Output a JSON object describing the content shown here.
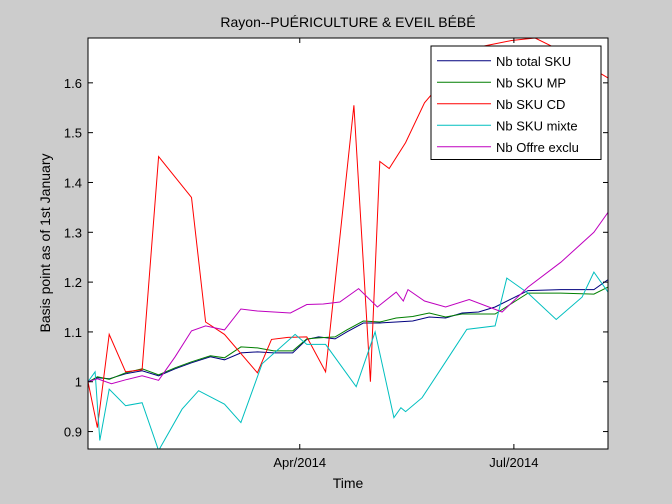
{
  "chart_data": {
    "type": "line",
    "title": "Rayon--PUÉRICULTURE & EVEIL BÉBÉ",
    "xlabel": "Time",
    "ylabel": "Basis point as of 1st January",
    "xlim": [
      "2014-01-01",
      "2014-08-10"
    ],
    "ylim": [
      0.865,
      1.69
    ],
    "xticks": [
      {
        "date": "2014-04-01",
        "label": "Apr/2014"
      },
      {
        "date": "2014-07-01",
        "label": "Jul/2014"
      }
    ],
    "yticks": [
      {
        "value": 0.9,
        "label": "0.9"
      },
      {
        "value": 1.0,
        "label": "1"
      },
      {
        "value": 1.1,
        "label": "1.1"
      },
      {
        "value": 1.2,
        "label": "1.2"
      },
      {
        "value": 1.3,
        "label": "1.3"
      },
      {
        "value": 1.4,
        "label": "1.4"
      },
      {
        "value": 1.5,
        "label": "1.5"
      },
      {
        "value": 1.6,
        "label": "1.6"
      }
    ],
    "grid": false,
    "legend_position": "top-right",
    "series": [
      {
        "name": "Nb total SKU",
        "color": "#00007f",
        "points": [
          [
            "2014-01-01",
            1.0
          ],
          [
            "2014-01-05",
            1.008
          ],
          [
            "2014-01-10",
            1.006
          ],
          [
            "2014-01-17",
            1.016
          ],
          [
            "2014-01-24",
            1.022
          ],
          [
            "2014-01-31",
            1.012
          ],
          [
            "2014-02-07",
            1.026
          ],
          [
            "2014-02-14",
            1.038
          ],
          [
            "2014-02-22",
            1.05
          ],
          [
            "2014-02-28",
            1.044
          ],
          [
            "2014-03-07",
            1.058
          ],
          [
            "2014-03-14",
            1.06
          ],
          [
            "2014-03-21",
            1.058
          ],
          [
            "2014-03-29",
            1.058
          ],
          [
            "2014-04-04",
            1.085
          ],
          [
            "2014-04-09",
            1.09
          ],
          [
            "2014-04-16",
            1.086
          ],
          [
            "2014-04-21",
            1.1
          ],
          [
            "2014-04-28",
            1.118
          ],
          [
            "2014-05-05",
            1.118
          ],
          [
            "2014-05-12",
            1.12
          ],
          [
            "2014-05-19",
            1.122
          ],
          [
            "2014-05-26",
            1.13
          ],
          [
            "2014-06-02",
            1.128
          ],
          [
            "2014-06-09",
            1.138
          ],
          [
            "2014-06-16",
            1.14
          ],
          [
            "2014-06-23",
            1.15
          ],
          [
            "2014-07-07",
            1.183
          ],
          [
            "2014-07-21",
            1.185
          ],
          [
            "2014-08-04",
            1.185
          ],
          [
            "2014-08-10",
            1.205
          ]
        ]
      },
      {
        "name": "Nb SKU MP",
        "color": "#007f00",
        "points": [
          [
            "2014-01-01",
            0.999
          ],
          [
            "2014-01-05",
            1.01
          ],
          [
            "2014-01-10",
            1.005
          ],
          [
            "2014-01-17",
            1.018
          ],
          [
            "2014-01-24",
            1.026
          ],
          [
            "2014-01-31",
            1.014
          ],
          [
            "2014-02-07",
            1.028
          ],
          [
            "2014-02-14",
            1.04
          ],
          [
            "2014-02-22",
            1.052
          ],
          [
            "2014-02-28",
            1.048
          ],
          [
            "2014-03-07",
            1.07
          ],
          [
            "2014-03-14",
            1.068
          ],
          [
            "2014-03-21",
            1.062
          ],
          [
            "2014-03-29",
            1.062
          ],
          [
            "2014-04-04",
            1.086
          ],
          [
            "2014-04-09",
            1.088
          ],
          [
            "2014-04-16",
            1.09
          ],
          [
            "2014-04-21",
            1.104
          ],
          [
            "2014-04-28",
            1.122
          ],
          [
            "2014-05-05",
            1.12
          ],
          [
            "2014-05-12",
            1.128
          ],
          [
            "2014-05-19",
            1.131
          ],
          [
            "2014-05-26",
            1.138
          ],
          [
            "2014-06-02",
            1.13
          ],
          [
            "2014-06-09",
            1.136
          ],
          [
            "2014-06-16",
            1.136
          ],
          [
            "2014-06-23",
            1.136
          ],
          [
            "2014-07-07",
            1.178
          ],
          [
            "2014-07-21",
            1.178
          ],
          [
            "2014-08-04",
            1.176
          ],
          [
            "2014-08-10",
            1.19
          ]
        ]
      },
      {
        "name": "Nb SKU CD",
        "color": "#ff0000",
        "points": [
          [
            "2014-01-01",
            1.0
          ],
          [
            "2014-01-05",
            0.908
          ],
          [
            "2014-01-10",
            1.095
          ],
          [
            "2014-01-17",
            1.02
          ],
          [
            "2014-01-24",
            1.024
          ],
          [
            "2014-01-31",
            1.452
          ],
          [
            "2014-02-14",
            1.37
          ],
          [
            "2014-02-20",
            1.12
          ],
          [
            "2014-02-28",
            1.095
          ],
          [
            "2014-03-14",
            1.018
          ],
          [
            "2014-03-20",
            1.085
          ],
          [
            "2014-03-27",
            1.089
          ],
          [
            "2014-04-04",
            1.09
          ],
          [
            "2014-04-12",
            1.02
          ],
          [
            "2014-04-24",
            1.555
          ],
          [
            "2014-05-01",
            1.0
          ],
          [
            "2014-05-05",
            1.442
          ],
          [
            "2014-05-09",
            1.428
          ],
          [
            "2014-05-16",
            1.48
          ],
          [
            "2014-05-24",
            1.56
          ],
          [
            "2014-06-02",
            1.61
          ],
          [
            "2014-06-12",
            1.668
          ],
          [
            "2014-06-30",
            1.685
          ],
          [
            "2014-07-10",
            1.69
          ],
          [
            "2014-07-25",
            1.655
          ],
          [
            "2014-08-10",
            1.61
          ]
        ]
      },
      {
        "name": "Nb SKU mixte",
        "color": "#00bfbf",
        "points": [
          [
            "2014-01-01",
            1.0
          ],
          [
            "2014-01-04",
            1.02
          ],
          [
            "2014-01-06",
            0.882
          ],
          [
            "2014-01-10",
            0.985
          ],
          [
            "2014-01-17",
            0.952
          ],
          [
            "2014-01-24",
            0.958
          ],
          [
            "2014-01-31",
            0.862
          ],
          [
            "2014-02-10",
            0.945
          ],
          [
            "2014-02-17",
            0.982
          ],
          [
            "2014-02-28",
            0.955
          ],
          [
            "2014-03-07",
            0.918
          ],
          [
            "2014-03-16",
            1.036
          ],
          [
            "2014-03-30",
            1.095
          ],
          [
            "2014-04-04",
            1.075
          ],
          [
            "2014-04-12",
            1.075
          ],
          [
            "2014-04-25",
            0.99
          ],
          [
            "2014-05-03",
            1.1
          ],
          [
            "2014-05-11",
            0.928
          ],
          [
            "2014-05-14",
            0.948
          ],
          [
            "2014-05-16",
            0.94
          ],
          [
            "2014-05-23",
            0.968
          ],
          [
            "2014-06-02",
            1.04
          ],
          [
            "2014-06-11",
            1.105
          ],
          [
            "2014-06-23",
            1.112
          ],
          [
            "2014-06-28",
            1.208
          ],
          [
            "2014-07-07",
            1.178
          ],
          [
            "2014-07-19",
            1.125
          ],
          [
            "2014-07-30",
            1.17
          ],
          [
            "2014-08-04",
            1.22
          ],
          [
            "2014-08-10",
            1.18
          ]
        ]
      },
      {
        "name": "Nb Offre exclu",
        "color": "#bf00bf",
        "points": [
          [
            "2014-01-01",
            1.0
          ],
          [
            "2014-01-05",
            1.006
          ],
          [
            "2014-01-11",
            0.996
          ],
          [
            "2014-01-17",
            1.004
          ],
          [
            "2014-01-24",
            1.012
          ],
          [
            "2014-01-31",
            1.003
          ],
          [
            "2014-02-07",
            1.05
          ],
          [
            "2014-02-14",
            1.102
          ],
          [
            "2014-02-20",
            1.112
          ],
          [
            "2014-02-28",
            1.104
          ],
          [
            "2014-03-07",
            1.146
          ],
          [
            "2014-03-14",
            1.142
          ],
          [
            "2014-03-28",
            1.138
          ],
          [
            "2014-04-04",
            1.155
          ],
          [
            "2014-04-11",
            1.156
          ],
          [
            "2014-04-18",
            1.16
          ],
          [
            "2014-04-26",
            1.187
          ],
          [
            "2014-05-04",
            1.15
          ],
          [
            "2014-05-12",
            1.18
          ],
          [
            "2014-05-15",
            1.162
          ],
          [
            "2014-05-17",
            1.185
          ],
          [
            "2014-05-24",
            1.162
          ],
          [
            "2014-06-02",
            1.15
          ],
          [
            "2014-06-12",
            1.165
          ],
          [
            "2014-06-26",
            1.14
          ],
          [
            "2014-07-07",
            1.19
          ],
          [
            "2014-07-21",
            1.24
          ],
          [
            "2014-08-04",
            1.3
          ],
          [
            "2014-08-10",
            1.34
          ]
        ]
      }
    ]
  }
}
